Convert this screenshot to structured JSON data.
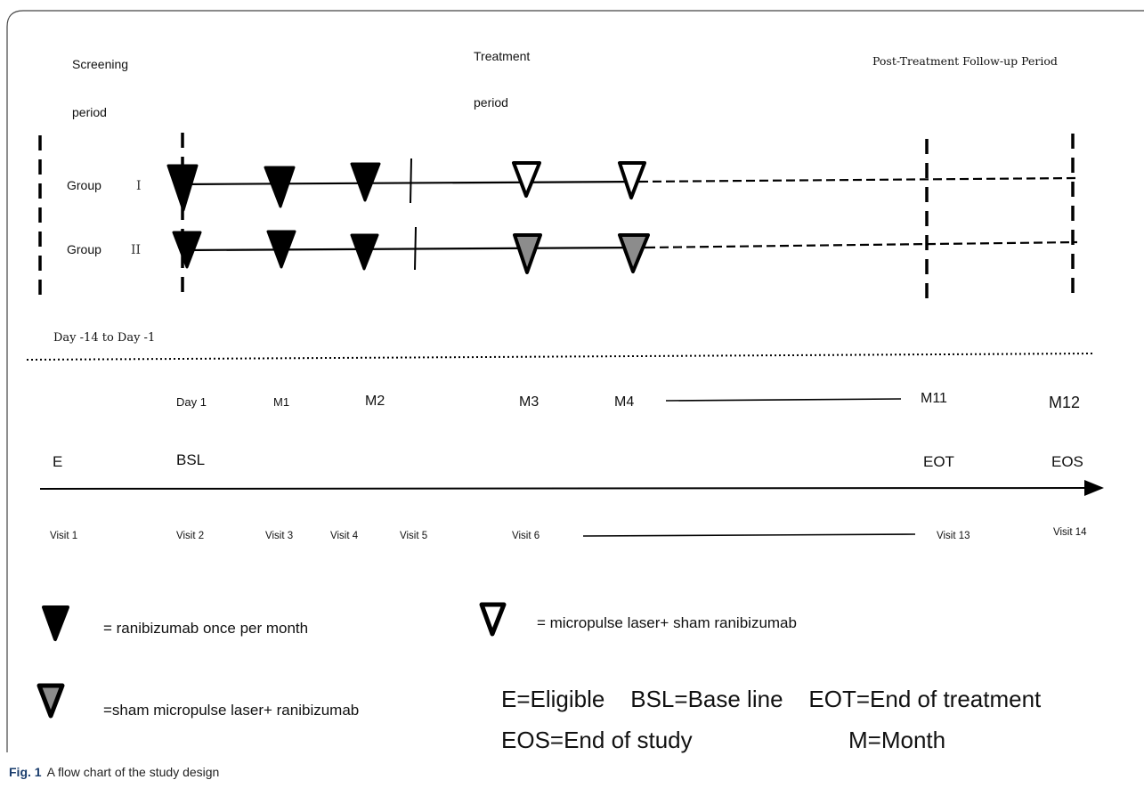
{
  "phases": {
    "screening_line1": "Screening",
    "screening_line2": "period",
    "treatment_line1": "Treatment",
    "treatment_line2": "period",
    "followup": "Post-Treatment Follow-up Period"
  },
  "groups": {
    "group1_word": "Group",
    "group1_numeral": "I",
    "group2_word": "Group",
    "group2_numeral": "II"
  },
  "screening_range": "Day -14 to Day -1",
  "months": [
    "Day 1",
    "M1",
    "M2",
    "M3",
    "M4",
    "M11",
    "M12"
  ],
  "milestones": [
    "E",
    "BSL",
    "EOT",
    "EOS"
  ],
  "visits": [
    "Visit 1",
    "Visit 2",
    "Visit 3",
    "Visit 4",
    "Visit 5",
    "Visit 6",
    "Visit 13",
    "Visit 14"
  ],
  "legend": {
    "black": "= ranibizumab once per month",
    "white": "= micropulse laser+ sham ranibizumab",
    "gray": "=sham micropulse laser+ ranibizumab"
  },
  "abbreviations": {
    "line1": "E=Eligible    BSL=Base line    EOT=End of treatment",
    "line2_left": "EOS=End of study",
    "line2_right": "M=Month"
  },
  "caption": {
    "label": "Fig. 1",
    "text": "A flow chart of the study design"
  },
  "colors": {
    "black_marker": "#000000",
    "gray_marker": "#8c8c8c",
    "white_marker": "#ffffff",
    "caption_label": "#1a3d6d"
  }
}
